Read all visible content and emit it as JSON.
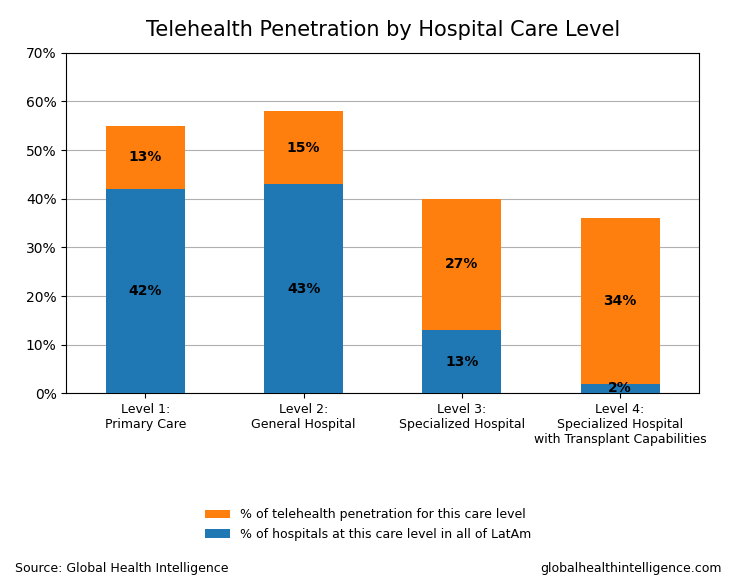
{
  "chart_data": {
    "type": "bar",
    "stacked": true,
    "title": "Telehealth Penetration by Hospital Care Level",
    "categories": [
      "Level 1:\nPrimary Care",
      "Level 2:\nGeneral Hospital",
      "Level 3:\nSpecialized Hospital",
      "Level 4:\nSpecialized Hospital\nwith Transplant Capabilities"
    ],
    "series": [
      {
        "name": "% of hospitals at this care level in all of LatAm",
        "values": [
          42,
          43,
          13,
          2
        ],
        "value_labels": [
          "42%",
          "43%",
          "13%",
          "2%"
        ]
      },
      {
        "name": "% of telehealth penetration for this care level",
        "values": [
          13,
          15,
          27,
          34
        ],
        "value_labels": [
          "13%",
          "15%",
          "27%",
          "34%"
        ]
      }
    ],
    "ylim": [
      0,
      70
    ],
    "yticks": [
      {
        "value": 0,
        "label": "0%"
      },
      {
        "value": 10,
        "label": "10%"
      },
      {
        "value": 20,
        "label": "20%"
      },
      {
        "value": 30,
        "label": "30%"
      },
      {
        "value": 40,
        "label": "40%"
      },
      {
        "value": 50,
        "label": "50%"
      },
      {
        "value": 60,
        "label": "60%"
      },
      {
        "value": 70,
        "label": "70%"
      }
    ],
    "grid": true,
    "data_labels": true,
    "legend": "lower center",
    "annotations": [
      "Source: Global Health Intelligence",
      "globalhealthintelligence.com"
    ]
  }
}
